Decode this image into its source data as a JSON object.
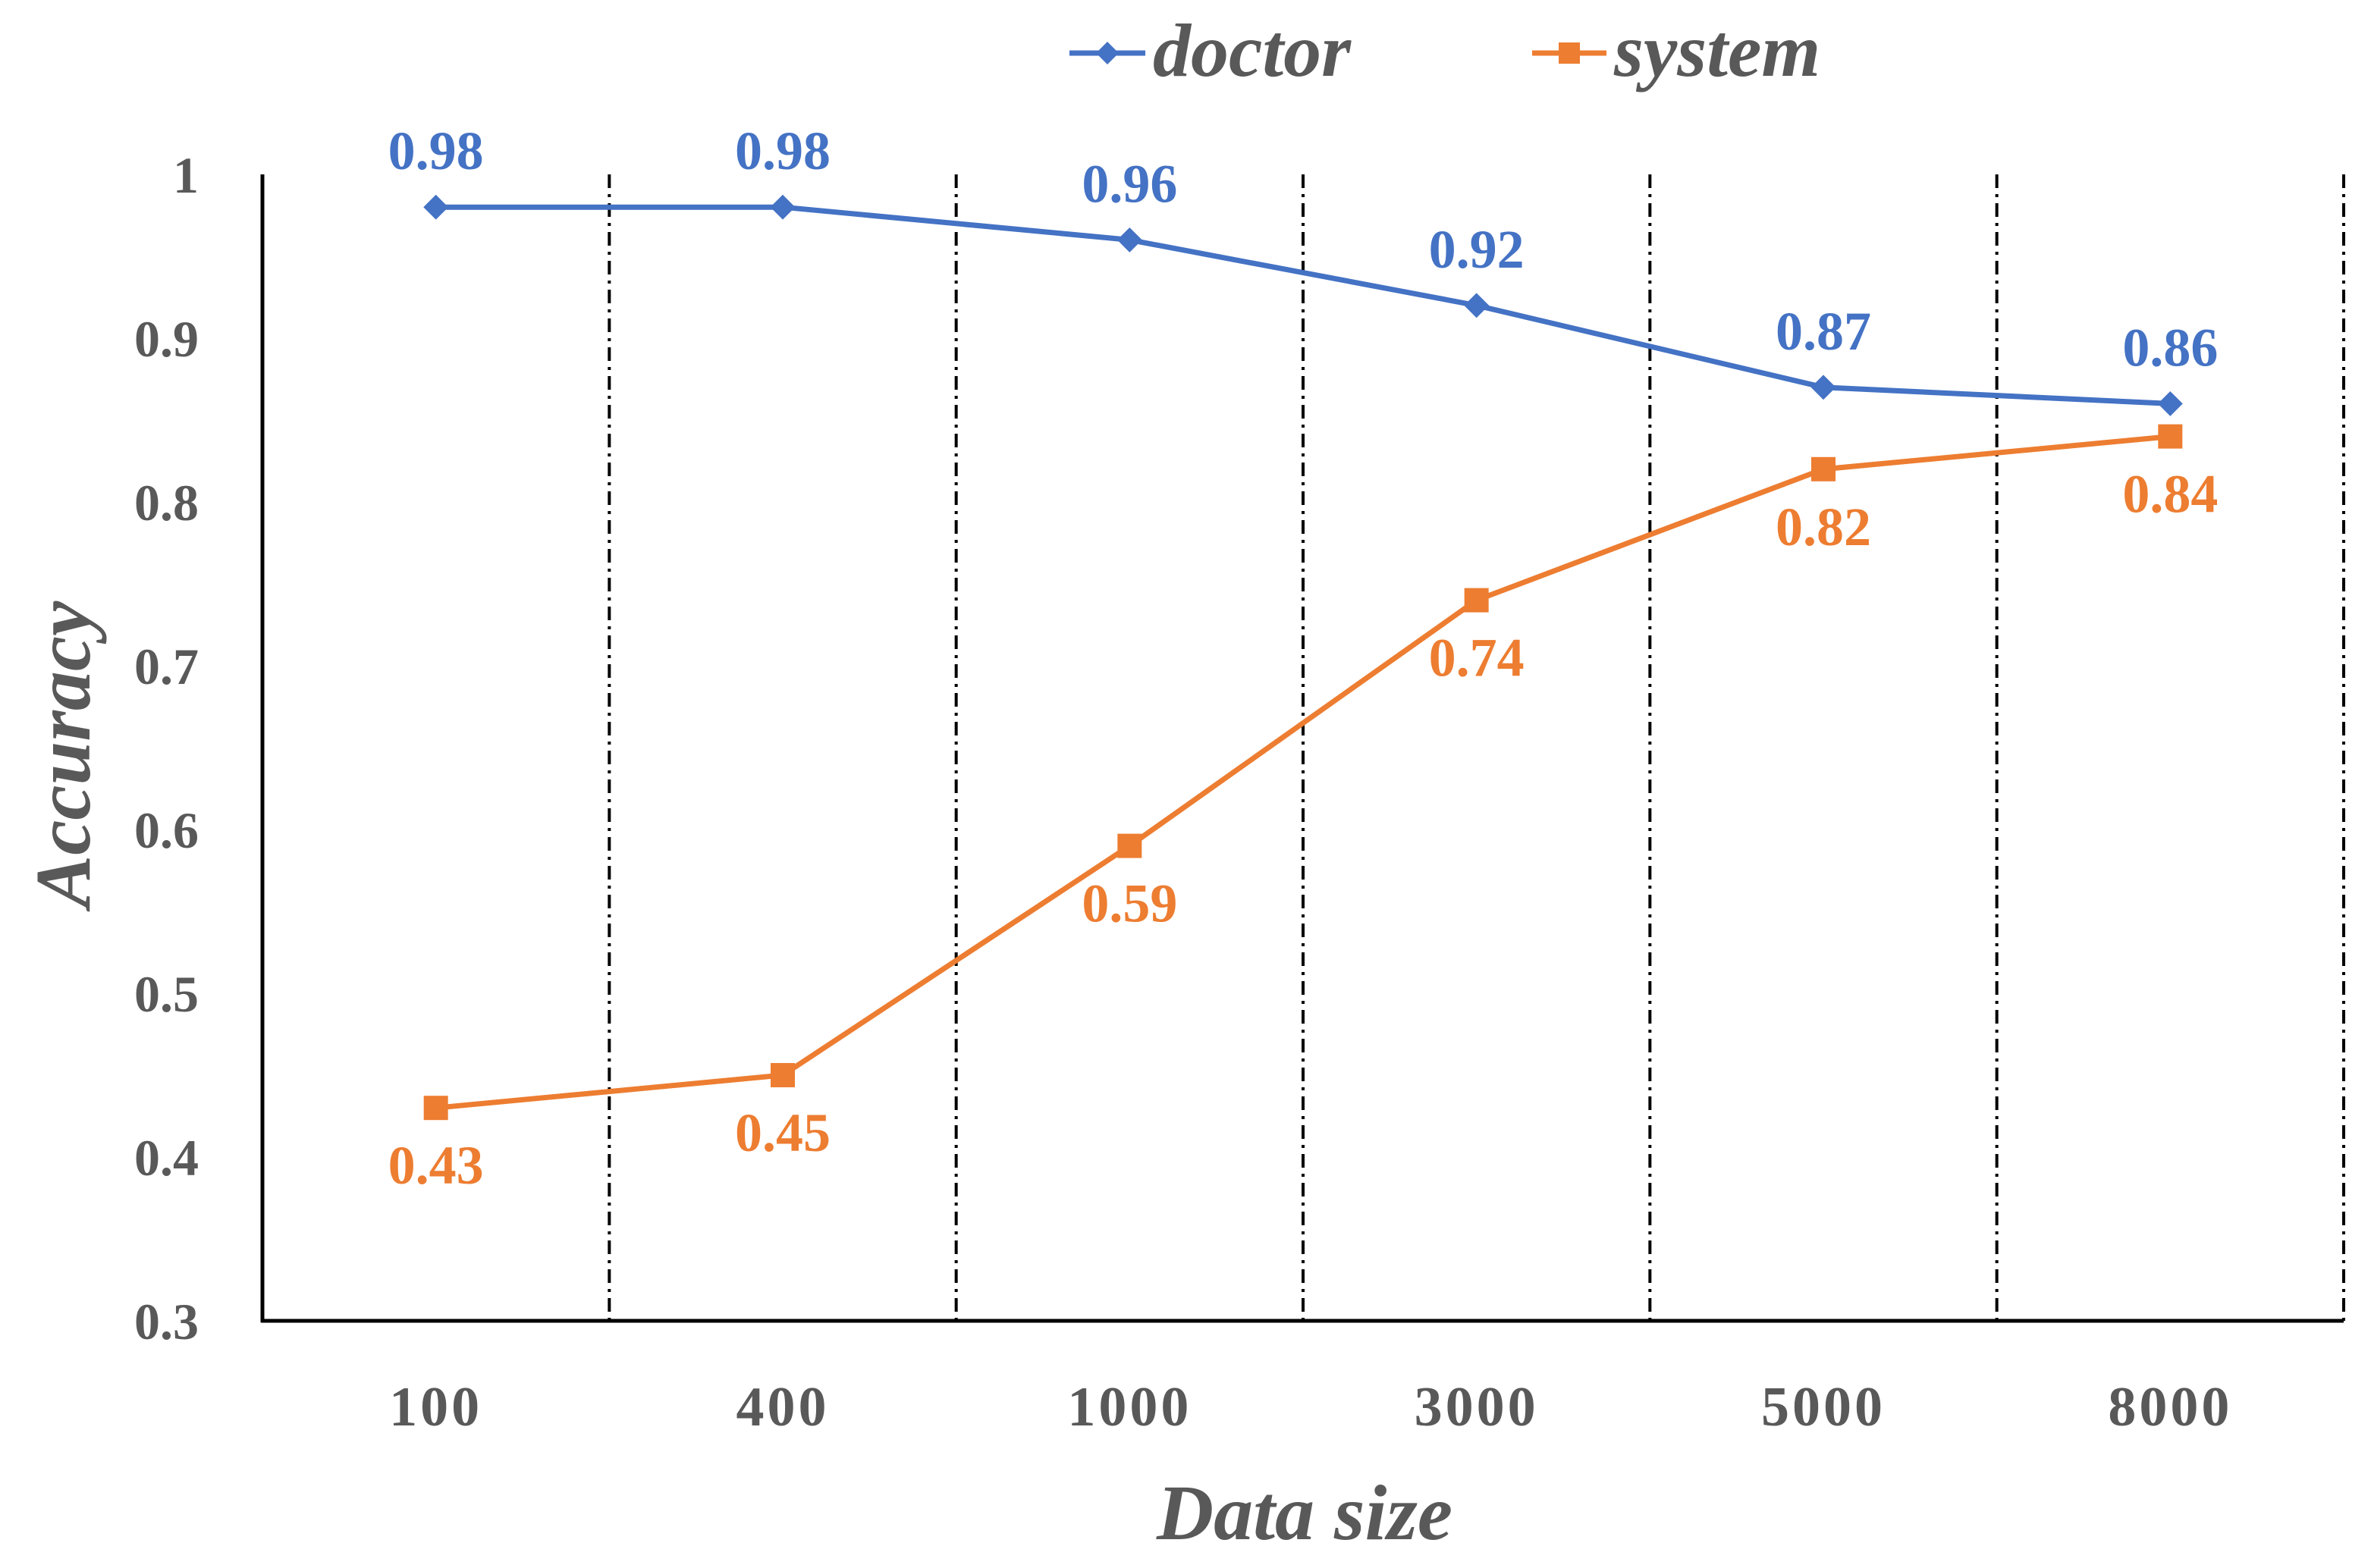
{
  "chart_data": {
    "type": "line",
    "title": "",
    "xlabel": "Data size",
    "ylabel": "Accuracy",
    "categories": [
      "100",
      "400",
      "1000",
      "3000",
      "5000",
      "8000"
    ],
    "ylim": [
      0.3,
      1.0
    ],
    "yticks": [
      0.3,
      0.4,
      0.5,
      0.6,
      0.7,
      0.8,
      0.9,
      1
    ],
    "ytick_labels": [
      "0.3",
      "0.4",
      "0.5",
      "0.6",
      "0.7",
      "0.8",
      "0.9",
      "1"
    ],
    "grid": "vertical dash-dot separators between categories",
    "legend_position": "top",
    "series": [
      {
        "name": "doctor",
        "color": "#4472C4",
        "marker": "diamond",
        "values": [
          0.98,
          0.98,
          0.96,
          0.92,
          0.87,
          0.86
        ],
        "data_labels": [
          "0.98",
          "0.98",
          "0.96",
          "0.92",
          "0.87",
          "0.86"
        ],
        "label_position": "above"
      },
      {
        "name": "system",
        "color": "#ED7D31",
        "marker": "square",
        "values": [
          0.43,
          0.45,
          0.59,
          0.74,
          0.82,
          0.84
        ],
        "data_labels": [
          "0.43",
          "0.45",
          "0.59",
          "0.74",
          "0.82",
          "0.84"
        ],
        "label_position": "below"
      }
    ]
  }
}
